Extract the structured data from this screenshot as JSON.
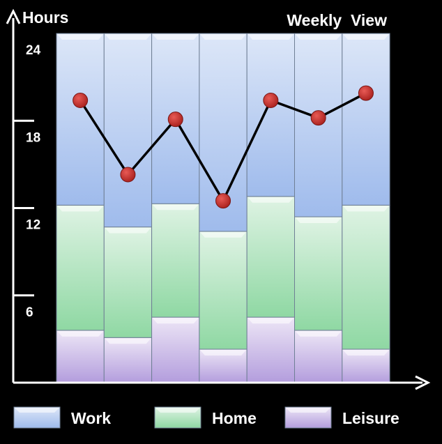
{
  "chart_data": {
    "type": "bar",
    "stacked": true,
    "title": "Weekly  View",
    "ylabel": "Hours",
    "xlabel": "",
    "ylim": [
      0,
      24
    ],
    "yticks": [
      6,
      12,
      18,
      24
    ],
    "grid": false,
    "legend": "bottom",
    "categories": [
      "",
      "",
      "",
      "",
      "",
      "",
      ""
    ],
    "series": [
      {
        "name": "Leisure",
        "color": "#b9a6de",
        "values": [
          3.6,
          3.1,
          4.5,
          2.3,
          4.5,
          3.6,
          2.3
        ]
      },
      {
        "name": "Home",
        "color": "#98dcac",
        "values": [
          8.6,
          7.6,
          7.8,
          8.1,
          8.3,
          7.8,
          9.9
        ]
      },
      {
        "name": "Work",
        "color": "#a9c3ee",
        "values": [
          11.8,
          13.3,
          11.7,
          13.6,
          11.2,
          12.6,
          11.8
        ]
      }
    ],
    "line": {
      "name": "",
      "color": "#c8302c",
      "values": [
        19.4,
        14.3,
        18.1,
        12.5,
        19.4,
        18.2,
        19.9
      ]
    }
  }
}
